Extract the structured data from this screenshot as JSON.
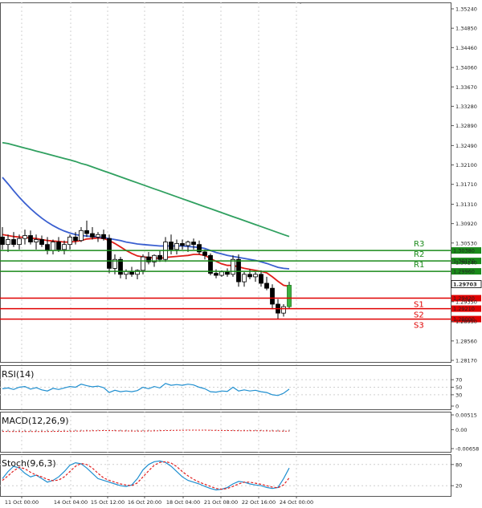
{
  "chart_data": [
    {
      "type": "candlestick",
      "price_axis_ticks": [
        "1.35240",
        "1.34850",
        "1.34460",
        "1.34060",
        "1.33670",
        "1.33280",
        "1.32890",
        "1.32490",
        "1.32100",
        "1.31710",
        "1.31310",
        "1.30920",
        "1.30530",
        "1.30140",
        "1.29740",
        "1.29350",
        "1.28950",
        "1.28560",
        "1.28170"
      ],
      "time_axis_labels": [
        "11 Oct 00:00",
        "14 Oct 04:00",
        "15 Oct 12:00",
        "16 Oct 20:00",
        "18 Oct 04:00",
        "21 Oct 08:00",
        "22 Oct 16:00",
        "24 Oct 00:00"
      ],
      "current_price": "1.29703",
      "levels": [
        {
          "name": "R3",
          "value": "1.30380",
          "color": "#1a8a1a"
        },
        {
          "name": "R2",
          "value": "1.30170",
          "color": "#1a8a1a"
        },
        {
          "name": "R1",
          "value": "1.29960",
          "color": "#1a8a1a"
        },
        {
          "name": "S1",
          "value": "1.29420",
          "color": "#e00000"
        },
        {
          "name": "S2",
          "value": "1.29210",
          "color": "#e00000"
        },
        {
          "name": "S3",
          "value": "1.29000",
          "color": "#e00000"
        }
      ],
      "candles": [
        [
          1.3065,
          1.3085,
          1.304,
          1.305
        ],
        [
          1.305,
          1.307,
          1.3035,
          1.306
        ],
        [
          1.306,
          1.3075,
          1.3045,
          1.305
        ],
        [
          1.305,
          1.307,
          1.304,
          1.3062
        ],
        [
          1.3062,
          1.308,
          1.305,
          1.3068
        ],
        [
          1.3068,
          1.3078,
          1.305,
          1.3055
        ],
        [
          1.3055,
          1.307,
          1.304,
          1.306
        ],
        [
          1.306,
          1.3068,
          1.3045,
          1.305
        ],
        [
          1.305,
          1.3065,
          1.303,
          1.3038
        ],
        [
          1.3038,
          1.306,
          1.303,
          1.3055
        ],
        [
          1.3055,
          1.3065,
          1.3035,
          1.304
        ],
        [
          1.304,
          1.3058,
          1.303,
          1.305
        ],
        [
          1.305,
          1.307,
          1.304,
          1.3065
        ],
        [
          1.3065,
          1.3075,
          1.305,
          1.3058
        ],
        [
          1.3058,
          1.3085,
          1.3055,
          1.3078
        ],
        [
          1.3078,
          1.3098,
          1.3065,
          1.3072
        ],
        [
          1.3072,
          1.3085,
          1.306,
          1.3065
        ],
        [
          1.3065,
          1.3075,
          1.3055,
          1.307
        ],
        [
          1.307,
          1.308,
          1.3058,
          1.3062
        ],
        [
          1.3062,
          1.307,
          1.2992,
          1.3002
        ],
        [
          1.3002,
          1.303,
          1.299,
          1.302
        ],
        [
          1.302,
          1.3025,
          1.2982,
          1.299
        ],
        [
          1.299,
          1.3,
          1.298,
          1.2996
        ],
        [
          1.2996,
          1.3005,
          1.2985,
          1.299
        ],
        [
          1.299,
          1.3,
          1.298,
          1.2998
        ],
        [
          1.2998,
          1.303,
          1.299,
          1.3025
        ],
        [
          1.3025,
          1.3035,
          1.301,
          1.3015
        ],
        [
          1.3015,
          1.303,
          1.3005,
          1.3028
        ],
        [
          1.3028,
          1.3038,
          1.3015,
          1.302
        ],
        [
          1.302,
          1.3065,
          1.3015,
          1.3055
        ],
        [
          1.3055,
          1.307,
          1.303,
          1.304
        ],
        [
          1.304,
          1.306,
          1.303,
          1.3052
        ],
        [
          1.3052,
          1.306,
          1.304,
          1.3048
        ],
        [
          1.3048,
          1.3058,
          1.3035,
          1.3055
        ],
        [
          1.3055,
          1.3062,
          1.304,
          1.305
        ],
        [
          1.305,
          1.3058,
          1.303,
          1.3035
        ],
        [
          1.3035,
          1.304,
          1.302,
          1.3028
        ],
        [
          1.3028,
          1.3032,
          1.2988,
          1.2992
        ],
        [
          1.2992,
          1.3,
          1.2982,
          1.2988
        ],
        [
          1.2988,
          1.2998,
          1.2985,
          1.2995
        ],
        [
          1.2995,
          1.3002,
          1.2985,
          1.299
        ],
        [
          1.299,
          1.3028,
          1.2985,
          1.302
        ],
        [
          1.302,
          1.303,
          1.2965,
          1.2975
        ],
        [
          1.2975,
          1.2995,
          1.2965,
          1.299
        ],
        [
          1.299,
          1.3,
          1.298,
          1.2985
        ],
        [
          1.2985,
          1.2995,
          1.2975,
          1.299
        ],
        [
          1.299,
          1.2998,
          1.2965,
          1.2972
        ],
        [
          1.2972,
          1.2985,
          1.2958,
          1.2962
        ],
        [
          1.2962,
          1.297,
          1.292,
          1.293
        ],
        [
          1.293,
          1.294,
          1.29,
          1.2912
        ],
        [
          1.2912,
          1.293,
          1.2905,
          1.2925
        ],
        [
          1.2925,
          1.2975,
          1.2922,
          1.2968
        ]
      ],
      "moving_averages": [
        {
          "color": "#e0201a",
          "values": [
            1.307,
            1.3068,
            1.3066,
            1.3065,
            1.3064,
            1.3063,
            1.3062,
            1.306,
            1.3058,
            1.3057,
            1.3056,
            1.3055,
            1.3055,
            1.3056,
            1.3058,
            1.3061,
            1.3062,
            1.3063,
            1.3062,
            1.3058,
            1.3052,
            1.3045,
            1.3038,
            1.3032,
            1.3027,
            1.3025,
            1.3024,
            1.3023,
            1.3022,
            1.3024,
            1.3025,
            1.3026,
            1.3027,
            1.3028,
            1.303,
            1.303,
            1.3028,
            1.3022,
            1.3016,
            1.3011,
            1.3008,
            1.3008,
            1.3005,
            1.3002,
            1.3,
            1.2998,
            1.2996,
            1.2993,
            1.2985,
            1.2976,
            1.2968,
            1.2966
          ]
        },
        {
          "color": "#3a5fd0",
          "values": [
            1.3185,
            1.3172,
            1.3158,
            1.3145,
            1.3133,
            1.3122,
            1.3112,
            1.3103,
            1.3095,
            1.3088,
            1.3082,
            1.3077,
            1.3073,
            1.307,
            1.3068,
            1.3067,
            1.3066,
            1.3065,
            1.3064,
            1.3062,
            1.306,
            1.3058,
            1.3055,
            1.3053,
            1.3051,
            1.305,
            1.3049,
            1.3048,
            1.3047,
            1.3047,
            1.3047,
            1.3047,
            1.3047,
            1.3046,
            1.3045,
            1.3044,
            1.3042,
            1.3038,
            1.3034,
            1.3031,
            1.3028,
            1.3026,
            1.3024,
            1.3022,
            1.302,
            1.3018,
            1.3015,
            1.3012,
            1.3008,
            1.3004,
            1.3002,
            1.3001
          ]
        },
        {
          "color": "#30a060",
          "values": [
            1.3255,
            1.3253,
            1.325,
            1.3247,
            1.3244,
            1.3241,
            1.3238,
            1.3235,
            1.3232,
            1.3229,
            1.3226,
            1.3223,
            1.322,
            1.3217,
            1.3213,
            1.321,
            1.3206,
            1.3202,
            1.3198,
            1.3194,
            1.319,
            1.3186,
            1.3182,
            1.3178,
            1.3174,
            1.317,
            1.3166,
            1.3162,
            1.3158,
            1.3154,
            1.315,
            1.3146,
            1.3142,
            1.3138,
            1.3134,
            1.313,
            1.3126,
            1.3122,
            1.3118,
            1.3114,
            1.311,
            1.3106,
            1.3102,
            1.3098,
            1.3094,
            1.309,
            1.3086,
            1.3082,
            1.3078,
            1.3074,
            1.307,
            1.3066
          ]
        }
      ]
    },
    {
      "type": "line",
      "label": "RSI(14)",
      "axis_ticks": [
        "70",
        "50",
        "30",
        "0"
      ],
      "ylim": [
        0,
        100
      ],
      "values": [
        46,
        48,
        44,
        50,
        52,
        45,
        49,
        43,
        40,
        47,
        44,
        48,
        52,
        50,
        58,
        54,
        51,
        53,
        49,
        36,
        42,
        38,
        40,
        38,
        41,
        50,
        46,
        52,
        48,
        60,
        55,
        57,
        55,
        58,
        56,
        50,
        46,
        38,
        37,
        40,
        39,
        50,
        40,
        43,
        40,
        42,
        38,
        36,
        30,
        28,
        34,
        45
      ]
    },
    {
      "type": "bar",
      "label": "MACD(12,26,9)",
      "axis_ticks": [
        "0.00515",
        "0.00",
        "-0.00658"
      ],
      "ylim": [
        -0.00658,
        0.00515
      ],
      "values": [
        -0.0006,
        -0.00065,
        -0.0007,
        -0.0007,
        -0.00068,
        -0.00066,
        -0.00064,
        -0.00062,
        -0.0006,
        -0.00058,
        -0.00055,
        -0.00052,
        -0.0005,
        -0.00046,
        -0.0004,
        -0.00035,
        -0.0003,
        -0.00028,
        -0.00026,
        -0.00035,
        -0.00045,
        -0.0005,
        -0.00052,
        -0.00052,
        -0.0005,
        -0.00045,
        -0.0004,
        -0.00035,
        -0.0003,
        -0.00022,
        -0.00018,
        -0.00015,
        -0.00014,
        -0.00013,
        -0.00013,
        -0.00015,
        -0.00018,
        -0.00025,
        -0.0003,
        -0.00034,
        -0.00036,
        -0.00034,
        -0.00038,
        -0.0004,
        -0.0004,
        -0.0004,
        -0.00042,
        -0.00045,
        -0.0005,
        -0.00058,
        -0.0006,
        -0.00056
      ],
      "signal": [
        -0.0006,
        -0.00062,
        -0.00064,
        -0.00066,
        -0.00067,
        -0.00066,
        -0.00065,
        -0.00064,
        -0.00062,
        -0.0006,
        -0.00058,
        -0.00056,
        -0.00053,
        -0.0005,
        -0.00046,
        -0.00042,
        -0.00038,
        -0.00034,
        -0.00031,
        -0.00032,
        -0.00036,
        -0.0004,
        -0.00044,
        -0.00047,
        -0.00048,
        -0.00047,
        -0.00044,
        -0.0004,
        -0.00036,
        -0.00031,
        -0.00026,
        -0.00022,
        -0.00019,
        -0.00017,
        -0.00016,
        -0.00016,
        -0.00017,
        -0.0002,
        -0.00023,
        -0.00027,
        -0.0003,
        -0.00032,
        -0.00034,
        -0.00036,
        -0.00037,
        -0.00038,
        -0.00039,
        -0.0004,
        -0.00043,
        -0.00047,
        -0.00051,
        -0.00053
      ]
    },
    {
      "type": "line",
      "label": "Stoch(9,6,3)",
      "axis_ticks": [
        "80",
        "20"
      ],
      "ylim": [
        0,
        100
      ],
      "series": [
        {
          "color": "#1f8fd0",
          "values": [
            40,
            60,
            75,
            70,
            55,
            45,
            50,
            40,
            30,
            35,
            45,
            60,
            78,
            85,
            82,
            70,
            55,
            40,
            35,
            30,
            25,
            20,
            18,
            22,
            40,
            65,
            80,
            88,
            90,
            86,
            75,
            60,
            45,
            35,
            30,
            25,
            18,
            12,
            8,
            10,
            15,
            25,
            32,
            30,
            25,
            22,
            20,
            15,
            12,
            15,
            40,
            70
          ]
        },
        {
          "color": "#e02020",
          "values": [
            35,
            48,
            62,
            72,
            68,
            58,
            50,
            45,
            38,
            34,
            36,
            45,
            60,
            75,
            83,
            80,
            70,
            55,
            42,
            35,
            30,
            25,
            22,
            20,
            28,
            45,
            62,
            78,
            86,
            88,
            84,
            74,
            60,
            48,
            38,
            30,
            24,
            18,
            12,
            10,
            12,
            18,
            25,
            30,
            30,
            27,
            24,
            20,
            16,
            14,
            22,
            42
          ]
        }
      ]
    }
  ]
}
